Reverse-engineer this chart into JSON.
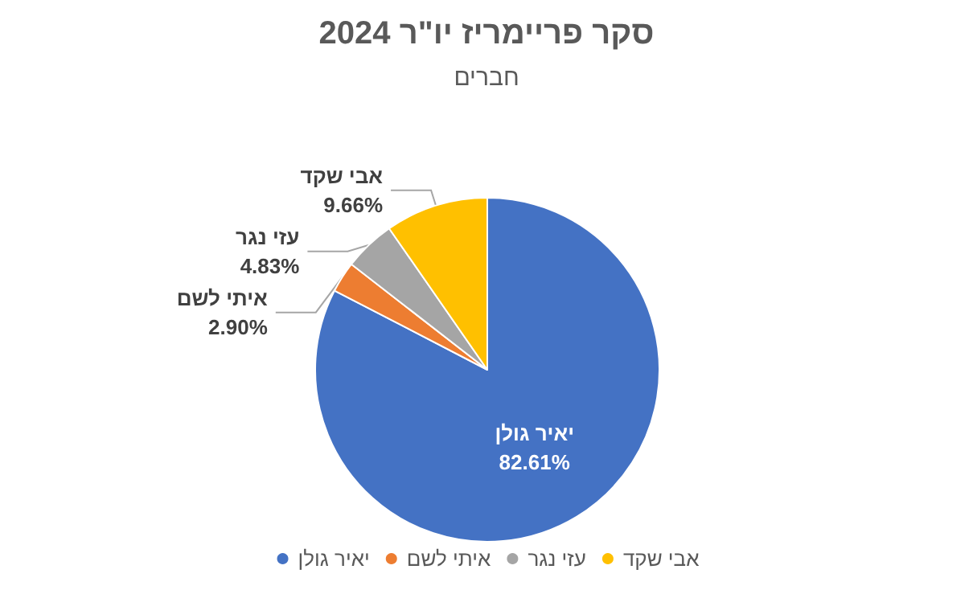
{
  "chart_data": {
    "type": "pie",
    "title": "סקר פריימריז יו\"ר 2024",
    "subtitle": "חברים",
    "categories": [
      "יאיר גולן",
      "איתי לשם",
      "עזי נגר",
      "אבי שקד"
    ],
    "values": [
      82.61,
      2.9,
      4.83,
      9.66
    ],
    "value_labels": [
      "82.61%",
      "2.90%",
      "4.83%",
      "9.66%"
    ],
    "colors": [
      "#4472c4",
      "#ed7d31",
      "#a5a5a5",
      "#ffc000"
    ],
    "legend": "bottom"
  }
}
